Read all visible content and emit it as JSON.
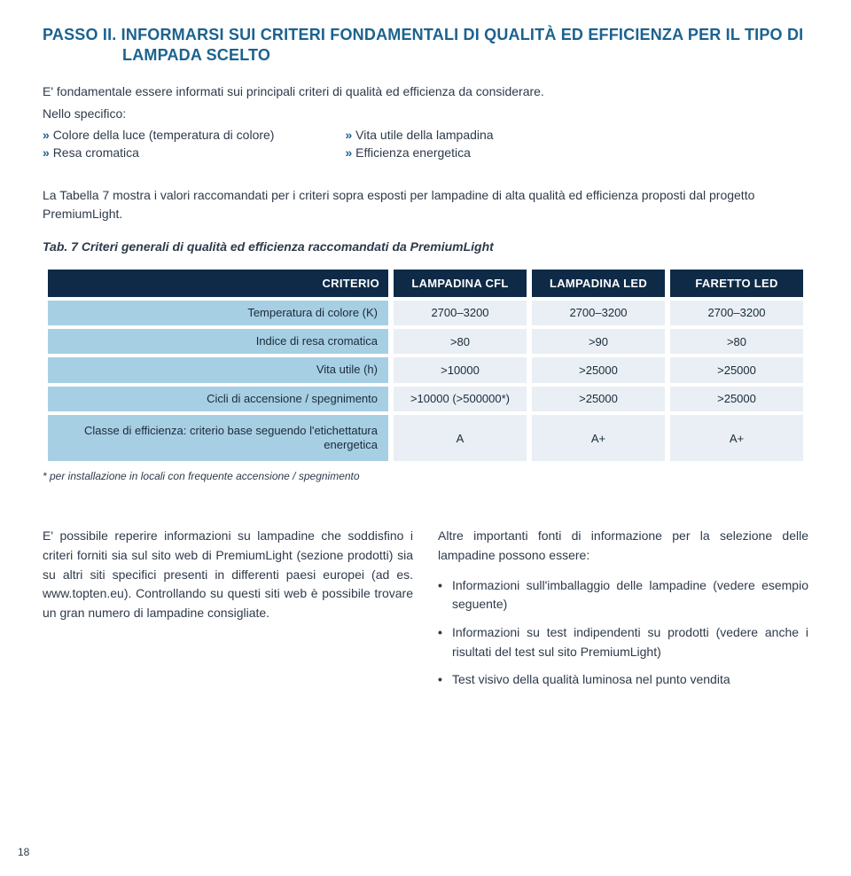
{
  "heading": {
    "line1": "PASSO II. INFORMARSI SUI CRITERI FONDAMENTALI DI QUALITÀ ED EFFICIENZA PER IL TIPO DI",
    "line2": "LAMPADA SCELTO",
    "color": "#1b628f"
  },
  "intro": "E' fondamentale essere informati sui principali criteri di qualità ed efficienza da considerare.",
  "nello": "Nello specifico:",
  "bullets": {
    "left": [
      "Colore della luce (temperatura di colore)",
      "Resa cromatica"
    ],
    "right": [
      "Vita utile della lampadina",
      "Efficienza energetica"
    ]
  },
  "para1": "La Tabella 7 mostra i valori raccomandati per i criteri sopra esposti per lampadine di alta qualità ed efficienza proposti dal progetto PremiumLight.",
  "caption": "Tab. 7 Criteri generali di qualità ed efficienza raccomandati da PremiumLight",
  "table": {
    "colors": {
      "header_bg": "#0e2a47",
      "header_text": "#ffffff",
      "rowlabel_bg": "#a7cfe3",
      "cell_bg": "#e9eff4"
    },
    "headers": [
      "CRITERIO",
      "LAMPADINA CFL",
      "LAMPADINA LED",
      "FARETTO LED"
    ],
    "rows": [
      {
        "label": "Temperatura di colore (K)",
        "cells": [
          "2700–3200",
          "2700–3200",
          "2700–3200"
        ]
      },
      {
        "label": "Indice di resa cromatica",
        "cells": [
          ">80",
          ">90",
          ">80"
        ]
      },
      {
        "label": "Vita utile (h)",
        "cells": [
          ">10000",
          ">25000",
          ">25000"
        ]
      },
      {
        "label": "Cicli di accensione / spegnimento",
        "cells": [
          ">10000 (>500000*)",
          ">25000",
          ">25000"
        ]
      },
      {
        "label": "Classe di efficienza: criterio base seguendo l'etichettatura energetica",
        "cells": [
          "A",
          "A+",
          "A+"
        ]
      }
    ]
  },
  "footnote": "* per installazione in locali con frequente accensione / spegnimento",
  "col_left": "E' possibile reperire informazioni su lampadine che soddisfino i criteri forniti sia sul sito web di PremiumLight (sezione prodotti) sia su altri siti specifici presenti in differenti paesi europei (ad es. www.topten.eu). Controllando su questi siti web è possibile trovare un gran numero di lampadine consigliate.",
  "col_right": {
    "intro": "Altre importanti fonti di informazione per la selezione delle lampadine possono essere:",
    "items": [
      "Informazioni sull'imballaggio delle lampadine (vedere esempio seguente)",
      "Informazioni su test indipendenti su prodotti (vedere anche i risultati del test sul sito PremiumLight)",
      "Test visivo della qualità luminosa nel punto vendita"
    ]
  },
  "page_number": "18"
}
